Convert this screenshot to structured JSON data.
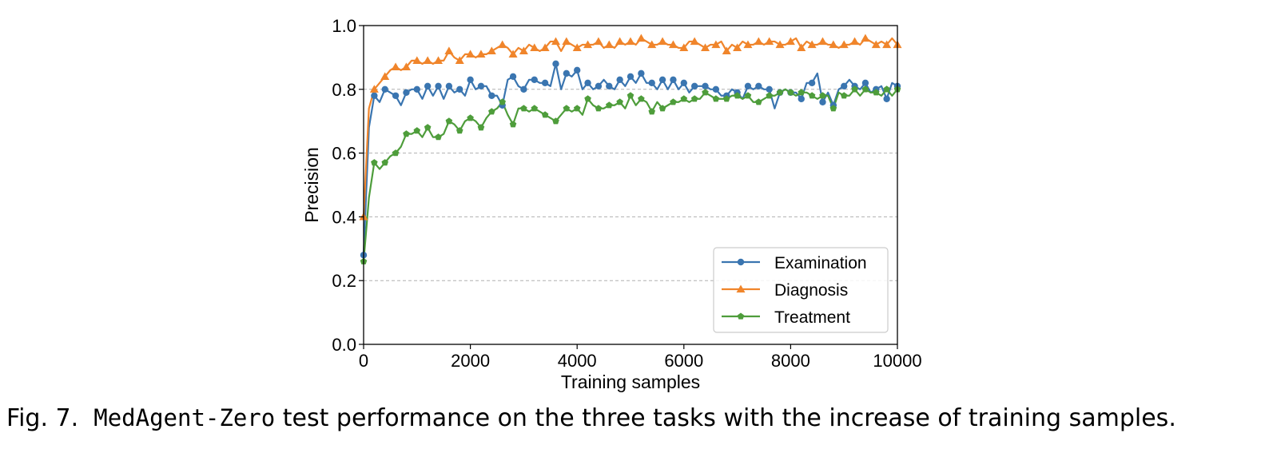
{
  "caption": {
    "prefix": "Fig. 7.",
    "code": "MedAgent-Zero",
    "text": "test performance on the three tasks with the increase of training samples."
  },
  "chart_data": {
    "type": "line",
    "xlabel": "Training samples",
    "ylabel": "Precision",
    "xlim": [
      0,
      10000
    ],
    "ylim": [
      0.0,
      1.0
    ],
    "xticks": [
      0,
      2000,
      4000,
      6000,
      8000,
      10000
    ],
    "yticks": [
      0.0,
      0.2,
      0.4,
      0.6,
      0.8,
      1.0
    ],
    "xtick_labels": [
      "0",
      "2000",
      "4000",
      "6000",
      "8000",
      "10000"
    ],
    "ytick_labels": [
      "0.0",
      "0.2",
      "0.4",
      "0.6",
      "0.8",
      "1.0"
    ],
    "grid": "horizontal dashed",
    "legend_position": "lower-right",
    "x": [
      0,
      100,
      200,
      300,
      400,
      500,
      600,
      700,
      800,
      900,
      1000,
      1100,
      1200,
      1300,
      1400,
      1500,
      1600,
      1700,
      1800,
      1900,
      2000,
      2100,
      2200,
      2300,
      2400,
      2500,
      2600,
      2700,
      2800,
      2900,
      3000,
      3100,
      3200,
      3300,
      3400,
      3500,
      3600,
      3700,
      3800,
      3900,
      4000,
      4100,
      4200,
      4300,
      4400,
      4500,
      4600,
      4700,
      4800,
      4900,
      5000,
      5100,
      5200,
      5300,
      5400,
      5500,
      5600,
      5700,
      5800,
      5900,
      6000,
      6100,
      6200,
      6300,
      6400,
      6500,
      6600,
      6700,
      6800,
      6900,
      7000,
      7100,
      7200,
      7300,
      7400,
      7500,
      7600,
      7700,
      7800,
      7900,
      8000,
      8100,
      8200,
      8300,
      8400,
      8500,
      8600,
      8700,
      8800,
      8900,
      9000,
      9100,
      9200,
      9300,
      9400,
      9500,
      9600,
      9700,
      9800,
      9900,
      10000
    ],
    "series": [
      {
        "name": "Examination",
        "color": "#3a75b0",
        "marker": "circle",
        "values": [
          0.28,
          0.68,
          0.78,
          0.76,
          0.8,
          0.79,
          0.78,
          0.75,
          0.79,
          0.8,
          0.8,
          0.77,
          0.81,
          0.78,
          0.81,
          0.77,
          0.81,
          0.79,
          0.8,
          0.78,
          0.83,
          0.8,
          0.81,
          0.81,
          0.78,
          0.78,
          0.75,
          0.83,
          0.84,
          0.81,
          0.8,
          0.83,
          0.83,
          0.82,
          0.82,
          0.81,
          0.88,
          0.8,
          0.85,
          0.84,
          0.86,
          0.8,
          0.82,
          0.8,
          0.81,
          0.83,
          0.81,
          0.8,
          0.83,
          0.81,
          0.84,
          0.82,
          0.85,
          0.82,
          0.82,
          0.8,
          0.83,
          0.8,
          0.83,
          0.8,
          0.82,
          0.79,
          0.81,
          0.81,
          0.81,
          0.8,
          0.8,
          0.78,
          0.78,
          0.8,
          0.79,
          0.77,
          0.81,
          0.8,
          0.81,
          0.8,
          0.8,
          0.74,
          0.79,
          0.8,
          0.79,
          0.79,
          0.77,
          0.82,
          0.82,
          0.85,
          0.76,
          0.79,
          0.75,
          0.8,
          0.81,
          0.83,
          0.81,
          0.8,
          0.82,
          0.79,
          0.8,
          0.81,
          0.77,
          0.82,
          0.81
        ]
      },
      {
        "name": "Diagnosis",
        "color": "#f0852b",
        "marker": "triangle",
        "values": [
          0.4,
          0.74,
          0.8,
          0.82,
          0.84,
          0.86,
          0.87,
          0.86,
          0.87,
          0.89,
          0.89,
          0.88,
          0.89,
          0.88,
          0.89,
          0.89,
          0.92,
          0.9,
          0.89,
          0.91,
          0.91,
          0.9,
          0.91,
          0.91,
          0.92,
          0.93,
          0.94,
          0.93,
          0.91,
          0.93,
          0.92,
          0.94,
          0.93,
          0.92,
          0.93,
          0.95,
          0.95,
          0.92,
          0.95,
          0.94,
          0.93,
          0.94,
          0.94,
          0.94,
          0.95,
          0.93,
          0.94,
          0.93,
          0.95,
          0.94,
          0.95,
          0.94,
          0.96,
          0.95,
          0.94,
          0.94,
          0.95,
          0.94,
          0.94,
          0.93,
          0.93,
          0.95,
          0.95,
          0.94,
          0.93,
          0.94,
          0.94,
          0.95,
          0.92,
          0.94,
          0.93,
          0.95,
          0.94,
          0.94,
          0.95,
          0.94,
          0.95,
          0.95,
          0.94,
          0.94,
          0.95,
          0.96,
          0.93,
          0.95,
          0.94,
          0.94,
          0.95,
          0.94,
          0.94,
          0.93,
          0.94,
          0.94,
          0.95,
          0.94,
          0.96,
          0.95,
          0.94,
          0.95,
          0.94,
          0.96,
          0.94
        ]
      },
      {
        "name": "Treatment",
        "color": "#4e9d3b",
        "marker": "pentagon",
        "values": [
          0.26,
          0.46,
          0.57,
          0.55,
          0.57,
          0.59,
          0.6,
          0.62,
          0.66,
          0.66,
          0.67,
          0.65,
          0.68,
          0.65,
          0.65,
          0.66,
          0.7,
          0.69,
          0.67,
          0.7,
          0.71,
          0.7,
          0.68,
          0.71,
          0.73,
          0.74,
          0.76,
          0.72,
          0.69,
          0.74,
          0.74,
          0.73,
          0.74,
          0.73,
          0.72,
          0.71,
          0.7,
          0.72,
          0.74,
          0.73,
          0.74,
          0.72,
          0.77,
          0.75,
          0.74,
          0.74,
          0.75,
          0.75,
          0.76,
          0.74,
          0.78,
          0.75,
          0.77,
          0.76,
          0.73,
          0.76,
          0.74,
          0.75,
          0.76,
          0.76,
          0.77,
          0.76,
          0.77,
          0.77,
          0.79,
          0.78,
          0.77,
          0.77,
          0.77,
          0.78,
          0.78,
          0.77,
          0.78,
          0.76,
          0.76,
          0.77,
          0.78,
          0.78,
          0.79,
          0.8,
          0.79,
          0.78,
          0.79,
          0.79,
          0.78,
          0.77,
          0.78,
          0.78,
          0.74,
          0.79,
          0.78,
          0.78,
          0.8,
          0.78,
          0.8,
          0.79,
          0.79,
          0.78,
          0.8,
          0.78,
          0.8
        ]
      }
    ]
  }
}
